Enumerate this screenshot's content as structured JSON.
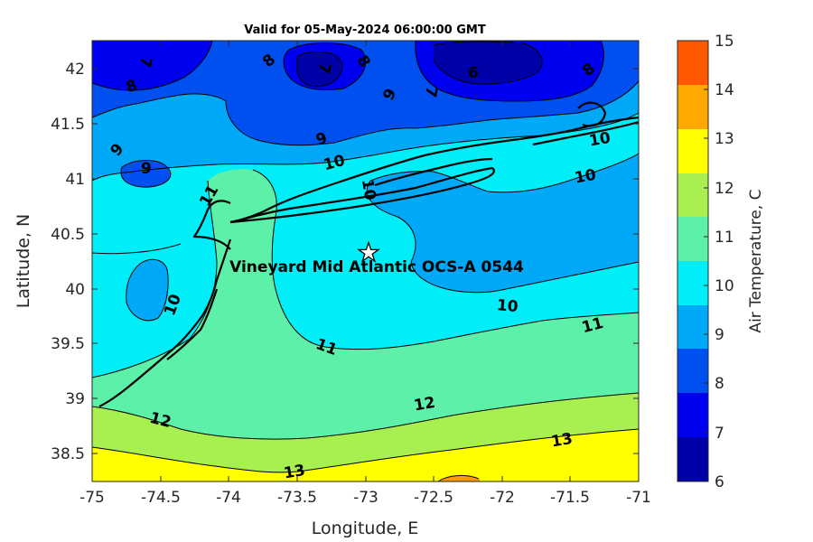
{
  "title": "Valid for 05-May-2024 06:00:00 GMT",
  "xlabel": "Longitude, E",
  "ylabel": "Latitude, N",
  "colorbar_label": "Air Temperature, C",
  "site_label": "Vineyard Mid Atlantic OCS-A 0544",
  "site_marker": "star-icon",
  "x_ticks": [
    "-75",
    "-74.5",
    "-74",
    "-73.5",
    "-73",
    "-72.5",
    "-72",
    "-71.5",
    "-71"
  ],
  "y_ticks": [
    "38.5",
    "39",
    "39.5",
    "40",
    "40.5",
    "41",
    "41.5",
    "42"
  ],
  "colorbar_ticks": [
    "6",
    "7",
    "8",
    "9",
    "10",
    "11",
    "12",
    "13",
    "14",
    "15"
  ],
  "colors": {
    "6-7": "#0000a8",
    "7-8": "#0000f0",
    "8-9": "#0050f0",
    "9-10": "#00a8f8",
    "10-11": "#00eef8",
    "11-12": "#5cf0a8",
    "12-13": "#a8f050",
    "13-14": "#ffff00",
    "14-15": "#ffa800",
    "15+": "#ff5800"
  },
  "contour_labels": {
    "l1": "8",
    "l2": "8",
    "l3": "7",
    "l4": "7",
    "l5": "8",
    "l6": "6",
    "l7": "7",
    "l8": "8",
    "l9": "9",
    "l10": "9",
    "l11": "9",
    "l12": "9",
    "l13": "10",
    "l14": "10",
    "l15": "10",
    "l16": "10",
    "l17": "11",
    "l18": "10",
    "l19": "10",
    "l20": "11",
    "l21": "11",
    "l22": "12",
    "l23": "12",
    "l24": "13",
    "l25": "13"
  },
  "chart_data": {
    "type": "heatmap",
    "title": "Valid for 05-May-2024 06:00:00 GMT",
    "xlabel": "Longitude, E",
    "ylabel": "Latitude, N",
    "colorbar_label": "Air Temperature, C",
    "xlim": [
      -75,
      -71
    ],
    "ylim": [
      38.25,
      42.25
    ],
    "clim": [
      6,
      15
    ],
    "contour_levels": [
      6,
      7,
      8,
      9,
      10,
      11,
      12,
      13,
      14,
      15
    ],
    "site": {
      "name": "Vineyard Mid Atlantic OCS-A 0544",
      "lon": -72.98,
      "lat": 40.32
    },
    "grid": false
  }
}
